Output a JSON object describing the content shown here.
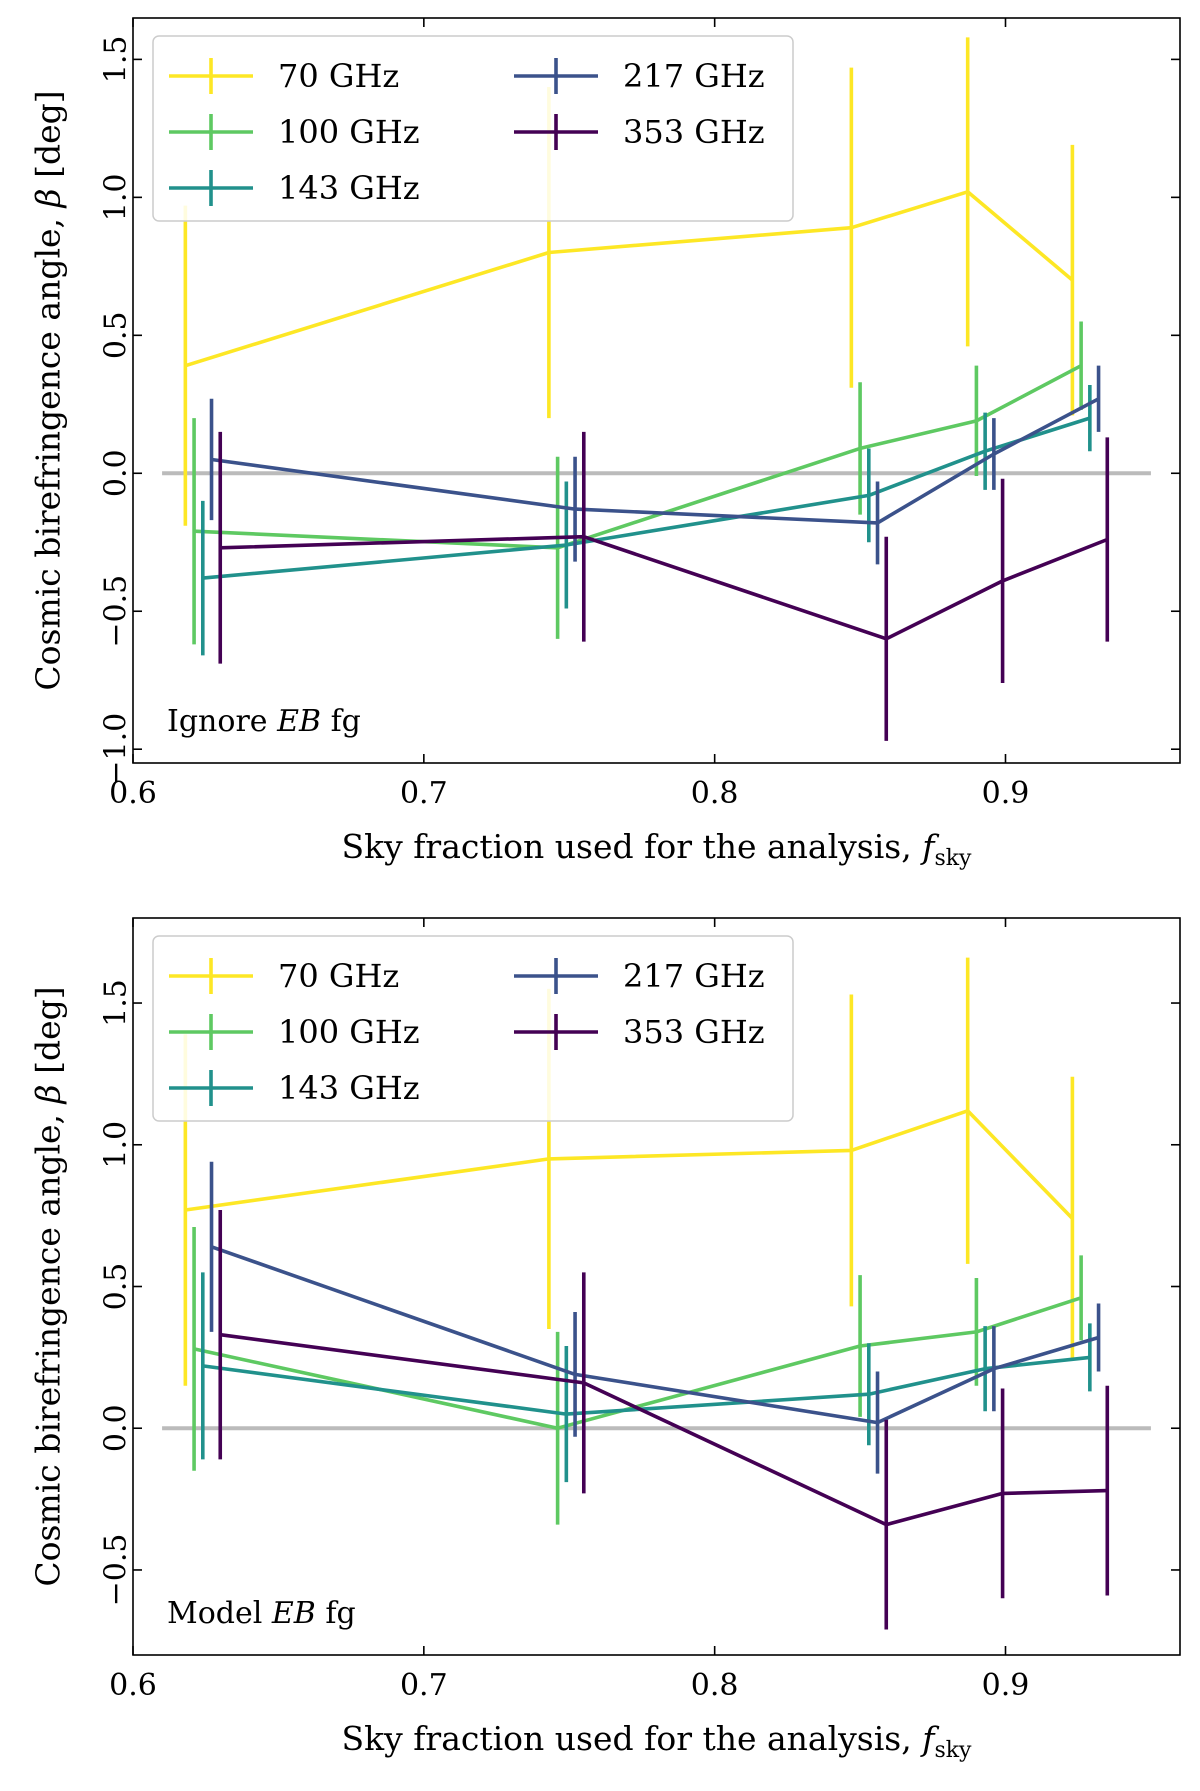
{
  "chart_data": [
    {
      "type": "line",
      "panel": "top",
      "annotation": {
        "prefix": "Ignore ",
        "emph": "EB",
        "suffix": " fg"
      },
      "xlabel": {
        "main": "Sky fraction used for the analysis, ",
        "var": "f",
        "sub": "sky"
      },
      "ylabel": {
        "main": "Cosmic birefringence angle, ",
        "var": "β",
        "suffix": " [deg]"
      },
      "xlim": [
        0.6,
        0.96
      ],
      "ylim": [
        -1.05,
        1.65
      ],
      "xticks": [
        0.6,
        0.7,
        0.8,
        0.9
      ],
      "xtick_labels": [
        "0.6",
        "0.7",
        "0.8",
        "0.9"
      ],
      "yticks": [
        -1.0,
        -0.5,
        0.0,
        0.5,
        1.0,
        1.5
      ],
      "ytick_labels": [
        "−1.0",
        "−0.5",
        "0.0",
        "0.5",
        "1.0",
        "1.5"
      ],
      "reference_line": {
        "y": 0.0,
        "x": [
          0.61,
          0.95
        ],
        "color": "#bbbbbb"
      },
      "legend": {
        "position": "top-left",
        "columns": 2
      },
      "series": [
        {
          "name": "70 GHz",
          "color": "#fde725",
          "x": [
            0.618,
            0.743,
            0.847,
            0.887,
            0.923
          ],
          "y": [
            0.39,
            0.8,
            0.89,
            1.02,
            0.7
          ],
          "err": [
            0.58,
            0.6,
            0.58,
            0.56,
            0.49
          ]
        },
        {
          "name": "100 GHz",
          "color": "#5ec962",
          "x": [
            0.621,
            0.746,
            0.85,
            0.89,
            0.926
          ],
          "y": [
            -0.21,
            -0.27,
            0.09,
            0.19,
            0.39
          ],
          "err": [
            0.41,
            0.33,
            0.24,
            0.2,
            0.16
          ]
        },
        {
          "name": "143 GHz",
          "color": "#21918c",
          "x": [
            0.624,
            0.749,
            0.853,
            0.893,
            0.929
          ],
          "y": [
            -0.38,
            -0.26,
            -0.08,
            0.08,
            0.2
          ],
          "err": [
            0.28,
            0.23,
            0.17,
            0.14,
            0.12
          ]
        },
        {
          "name": "217 GHz",
          "color": "#3b528b",
          "x": [
            0.627,
            0.752,
            0.856,
            0.896,
            0.932
          ],
          "y": [
            0.05,
            -0.13,
            -0.18,
            0.07,
            0.27
          ],
          "err": [
            0.22,
            0.19,
            0.15,
            0.13,
            0.12
          ]
        },
        {
          "name": "353 GHz",
          "color": "#440154",
          "x": [
            0.63,
            0.755,
            0.859,
            0.899,
            0.935
          ],
          "y": [
            -0.27,
            -0.23,
            -0.6,
            -0.39,
            -0.24
          ],
          "err": [
            0.42,
            0.38,
            0.37,
            0.37,
            0.37
          ]
        }
      ]
    },
    {
      "type": "line",
      "panel": "bottom",
      "annotation": {
        "prefix": "Model ",
        "emph": "EB",
        "suffix": " fg"
      },
      "xlabel": {
        "main": "Sky fraction used for the analysis, ",
        "var": "f",
        "sub": "sky"
      },
      "ylabel": {
        "main": "Cosmic birefringence angle, ",
        "var": "β",
        "suffix": " [deg]"
      },
      "xlim": [
        0.6,
        0.96
      ],
      "ylim": [
        -0.8,
        1.8
      ],
      "xticks": [
        0.6,
        0.7,
        0.8,
        0.9
      ],
      "xtick_labels": [
        "0.6",
        "0.7",
        "0.8",
        "0.9"
      ],
      "yticks": [
        -0.5,
        0.0,
        0.5,
        1.0,
        1.5
      ],
      "ytick_labels": [
        "−0.5",
        "0.0",
        "0.5",
        "1.0",
        "1.5"
      ],
      "reference_line": {
        "y": 0.0,
        "x": [
          0.61,
          0.95
        ],
        "color": "#bbbbbb"
      },
      "legend": {
        "position": "top-left",
        "columns": 2
      },
      "series": [
        {
          "name": "70 GHz",
          "color": "#fde725",
          "x": [
            0.618,
            0.743,
            0.847,
            0.887,
            0.923
          ],
          "y": [
            0.77,
            0.95,
            0.98,
            1.12,
            0.74
          ],
          "err": [
            0.62,
            0.6,
            0.55,
            0.54,
            0.5
          ]
        },
        {
          "name": "100 GHz",
          "color": "#5ec962",
          "x": [
            0.621,
            0.746,
            0.85,
            0.89,
            0.926
          ],
          "y": [
            0.28,
            0.0,
            0.29,
            0.34,
            0.46
          ],
          "err": [
            0.43,
            0.34,
            0.25,
            0.19,
            0.15
          ]
        },
        {
          "name": "143 GHz",
          "color": "#21918c",
          "x": [
            0.624,
            0.749,
            0.853,
            0.893,
            0.929
          ],
          "y": [
            0.22,
            0.05,
            0.12,
            0.21,
            0.25
          ],
          "err": [
            0.33,
            0.24,
            0.18,
            0.15,
            0.12
          ]
        },
        {
          "name": "217 GHz",
          "color": "#3b528b",
          "x": [
            0.627,
            0.752,
            0.856,
            0.896,
            0.932
          ],
          "y": [
            0.64,
            0.19,
            0.02,
            0.21,
            0.32
          ],
          "err": [
            0.3,
            0.22,
            0.18,
            0.15,
            0.12
          ]
        },
        {
          "name": "353 GHz",
          "color": "#440154",
          "x": [
            0.63,
            0.755,
            0.859,
            0.899,
            0.935
          ],
          "y": [
            0.33,
            0.16,
            -0.34,
            -0.23,
            -0.22
          ],
          "err": [
            0.44,
            0.39,
            0.37,
            0.37,
            0.37
          ]
        }
      ]
    }
  ]
}
